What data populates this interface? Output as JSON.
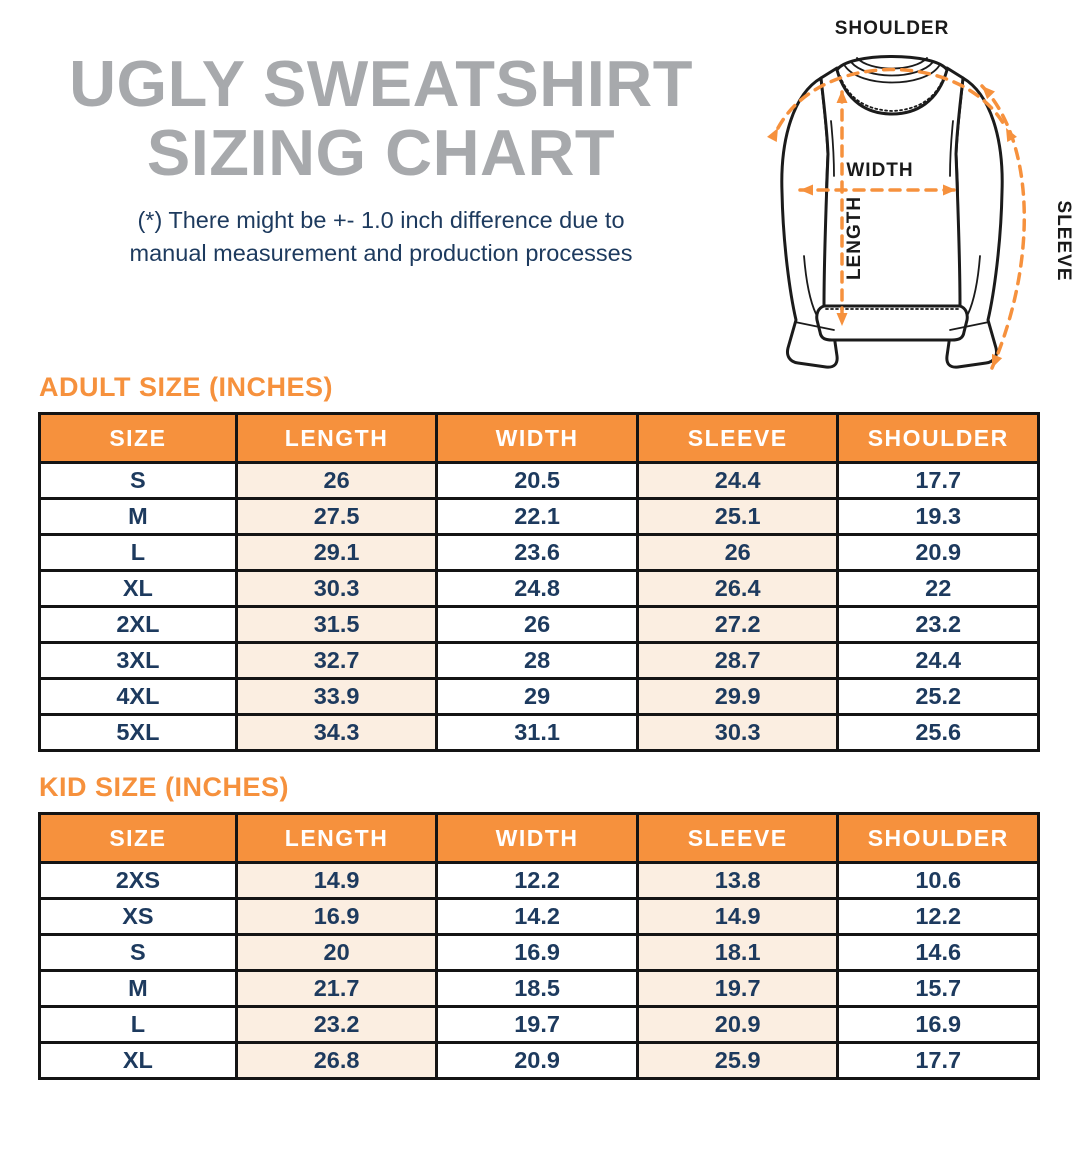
{
  "header": {
    "title_line1": "UGLY SWEATSHIRT",
    "title_line2": "SIZING CHART",
    "disclaimer_line1": "(*) There might be +- 1.0 inch difference due to",
    "disclaimer_line2": "manual measurement and production processes"
  },
  "diagram": {
    "shoulder": "SHOULDER",
    "width": "WIDTH",
    "length": "LENGTH",
    "sleeve": "SLEEVE"
  },
  "colors": {
    "accent_orange": "#F6913D",
    "row_shade_peach": "#FBEEE1",
    "text_navy": "#1D3A5E",
    "title_gray": "#A7A9AC",
    "table_border_black": "#141414"
  },
  "adult_table": {
    "heading": "ADULT SIZE (INCHES)",
    "columns": [
      "SIZE",
      "LENGTH",
      "WIDTH",
      "SLEEVE",
      "SHOULDER"
    ],
    "rows": [
      [
        "S",
        "26",
        "20.5",
        "24.4",
        "17.7"
      ],
      [
        "M",
        "27.5",
        "22.1",
        "25.1",
        "19.3"
      ],
      [
        "L",
        "29.1",
        "23.6",
        "26",
        "20.9"
      ],
      [
        "XL",
        "30.3",
        "24.8",
        "26.4",
        "22"
      ],
      [
        "2XL",
        "31.5",
        "26",
        "27.2",
        "23.2"
      ],
      [
        "3XL",
        "32.7",
        "28",
        "28.7",
        "24.4"
      ],
      [
        "4XL",
        "33.9",
        "29",
        "29.9",
        "25.2"
      ],
      [
        "5XL",
        "34.3",
        "31.1",
        "30.3",
        "25.6"
      ]
    ]
  },
  "kid_table": {
    "heading": "KID SIZE (INCHES)",
    "columns": [
      "SIZE",
      "LENGTH",
      "WIDTH",
      "SLEEVE",
      "SHOULDER"
    ],
    "rows": [
      [
        "2XS",
        "14.9",
        "12.2",
        "13.8",
        "10.6"
      ],
      [
        "XS",
        "16.9",
        "14.2",
        "14.9",
        "12.2"
      ],
      [
        "S",
        "20",
        "16.9",
        "18.1",
        "14.6"
      ],
      [
        "M",
        "21.7",
        "18.5",
        "19.7",
        "15.7"
      ],
      [
        "L",
        "23.2",
        "19.7",
        "20.9",
        "16.9"
      ],
      [
        "XL",
        "26.8",
        "20.9",
        "25.9",
        "17.7"
      ]
    ]
  }
}
